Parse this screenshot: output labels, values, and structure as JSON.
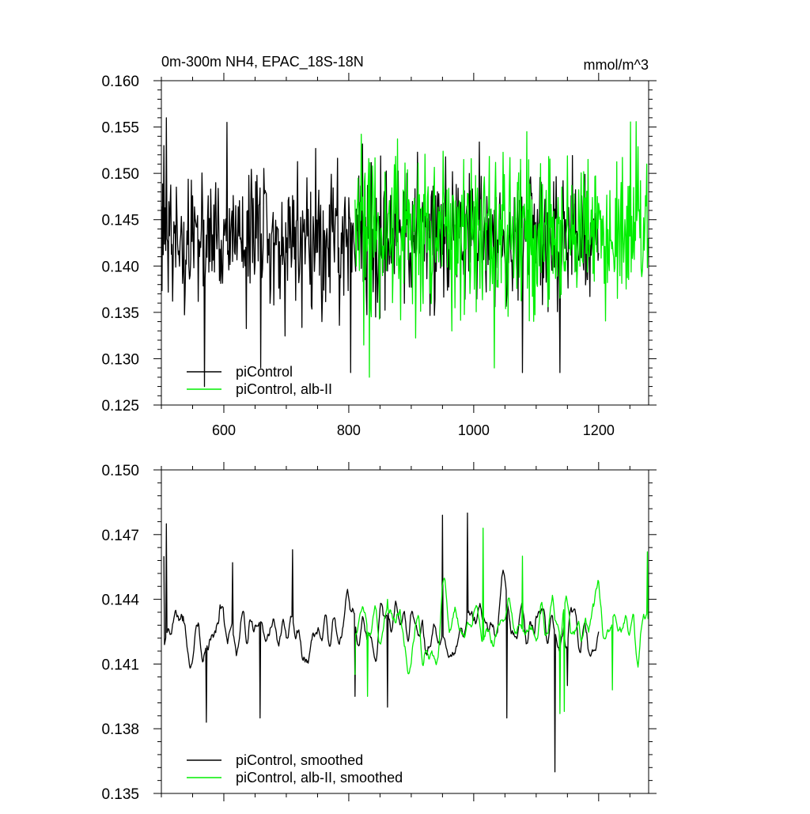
{
  "colors": {
    "series_primary": "#000000",
    "series_secondary": "#00ee00",
    "background": "#ffffff"
  },
  "top_panel": {
    "title": "0m-300m NH4, EPAC_18S-18N",
    "units": "mmol/m^3"
  },
  "chart_data": [
    {
      "type": "line",
      "title": "0m-300m NH4, EPAC_18S-18N",
      "xlabel": "",
      "ylabel": "",
      "units_label": "mmol/m^3",
      "xlim": [
        500,
        1280
      ],
      "ylim": [
        0.125,
        0.16
      ],
      "x_ticks": [
        600,
        800,
        1000,
        1200
      ],
      "x_tick_labels": [
        "600",
        "800",
        "1000",
        "1200"
      ],
      "y_ticks": [
        0.125,
        0.13,
        0.135,
        0.14,
        0.145,
        0.15,
        0.155,
        0.16
      ],
      "y_tick_labels": [
        "0.125",
        "0.130",
        "0.135",
        "0.140",
        "0.145",
        "0.150",
        "0.155",
        "0.160"
      ],
      "grid": false,
      "legend_position": "bottom-left",
      "series": [
        {
          "name": "piControl",
          "color": "#000000",
          "x_range": [
            500,
            1200
          ],
          "mean": 0.1432,
          "std": 0.0036,
          "anchor_x": [
            504,
            508,
            563,
            569,
            605,
            659,
            757,
            803,
            1078,
            1138
          ],
          "anchor_y": [
            0.153,
            0.156,
            0.142,
            0.127,
            0.1555,
            0.129,
            0.134,
            0.1285,
            0.1285,
            0.1285
          ]
        },
        {
          "name": "piControl, alb-II",
          "color": "#00ee00",
          "x_range": [
            810,
            1280
          ],
          "mean": 0.1435,
          "std": 0.0044,
          "anchor_x": [
            812,
            833,
            872,
            1033,
            1085,
            1277
          ],
          "anchor_y": [
            0.14,
            0.128,
            0.1465,
            0.129,
            0.1545,
            0.151
          ]
        }
      ]
    },
    {
      "type": "line",
      "title": "",
      "xlabel": "",
      "ylabel": "",
      "xlim": [
        500,
        1280
      ],
      "ylim": [
        0.135,
        0.15
      ],
      "x_ticks": [
        600,
        800,
        1000,
        1200
      ],
      "x_tick_labels": [],
      "y_ticks": [
        0.135,
        0.138,
        0.141,
        0.144,
        0.147,
        0.15
      ],
      "y_tick_labels": [
        "0.135",
        "0.138",
        "0.141",
        "0.144",
        "0.147",
        "0.150"
      ],
      "grid": false,
      "legend_position": "bottom-left",
      "series": [
        {
          "name": "piControl, smoothed",
          "color": "#000000",
          "x_range": [
            504,
            1200
          ],
          "mean": 0.1425,
          "std": 0.0015,
          "anchor_x": [
            504,
            508,
            534,
            572,
            614,
            658,
            710,
            810,
            862,
            950,
            990,
            1053,
            1130,
            1150,
            1200
          ],
          "anchor_y": [
            0.146,
            0.1475,
            0.143,
            0.1383,
            0.1457,
            0.1385,
            0.1463,
            0.1395,
            0.139,
            0.1479,
            0.148,
            0.1385,
            0.136,
            0.14,
            0.1425
          ]
        },
        {
          "name": "piControl, alb-II, smoothed",
          "color": "#00ee00",
          "x_range": [
            810,
            1280
          ],
          "mean": 0.1428,
          "std": 0.0014,
          "anchor_x": [
            810,
            830,
            862,
            1015,
            1078,
            1138,
            1145,
            1222,
            1278
          ],
          "anchor_y": [
            0.1405,
            0.1395,
            0.144,
            0.1473,
            0.146,
            0.1387,
            0.1388,
            0.1398,
            0.1462
          ]
        }
      ]
    }
  ]
}
